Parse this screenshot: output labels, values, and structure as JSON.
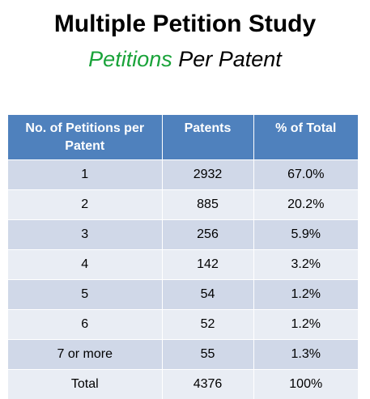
{
  "title": "Multiple Petition Study",
  "subtitle": {
    "accent": "Petitions",
    "rest": " Per Patent"
  },
  "colors": {
    "header_bg": "#4f81bd",
    "row_dark": "#d0d8e8",
    "row_light": "#e9edf4",
    "accent_green": "#1aa33a"
  },
  "table": {
    "headers": [
      "No. of Petitions per Patent",
      "Patents",
      "% of Total"
    ],
    "rows": [
      [
        "1",
        "2932",
        "67.0%"
      ],
      [
        "2",
        "885",
        "20.2%"
      ],
      [
        "3",
        "256",
        "5.9%"
      ],
      [
        "4",
        "142",
        "3.2%"
      ],
      [
        "5",
        "54",
        "1.2%"
      ],
      [
        "6",
        "52",
        "1.2%"
      ],
      [
        "7 or more",
        "55",
        "1.3%"
      ],
      [
        "Total",
        "4376",
        "100%"
      ]
    ]
  },
  "chart_data": {
    "type": "table",
    "title": "Multiple Petition Study",
    "subtitle": "Petitions Per Patent",
    "columns": [
      "No. of Petitions per Patent",
      "Patents",
      "% of Total"
    ],
    "rows": [
      [
        "1",
        2932,
        "67.0%"
      ],
      [
        "2",
        885,
        "20.2%"
      ],
      [
        "3",
        256,
        "5.9%"
      ],
      [
        "4",
        142,
        "3.2%"
      ],
      [
        "5",
        54,
        "1.2%"
      ],
      [
        "6",
        52,
        "1.2%"
      ],
      [
        "7 or more",
        55,
        "1.3%"
      ],
      [
        "Total",
        4376,
        "100%"
      ]
    ]
  }
}
